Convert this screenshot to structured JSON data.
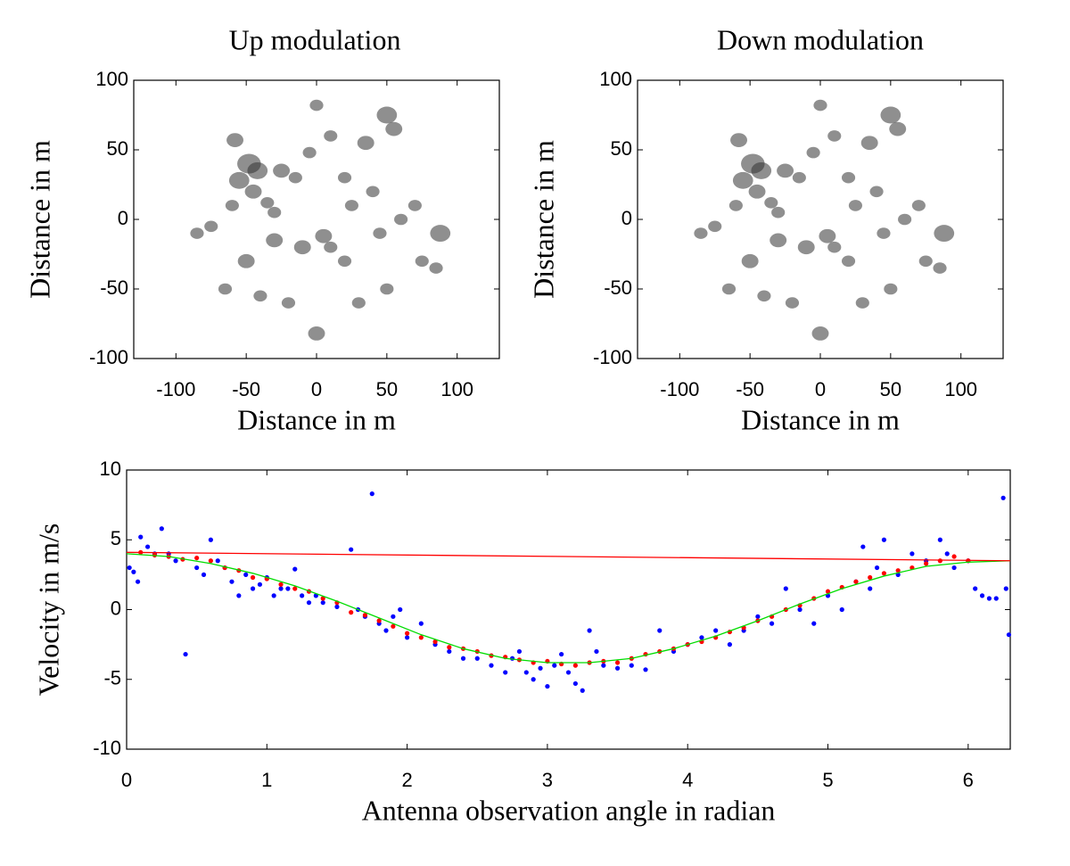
{
  "chart_data": [
    {
      "type": "scatter",
      "title": "Up modulation",
      "xlabel": "Distance in m",
      "ylabel": "Distance in m",
      "xlim": [
        -130,
        130
      ],
      "ylim": [
        -100,
        100
      ],
      "xticks": [
        -100,
        -50,
        0,
        50,
        100
      ],
      "yticks": [
        -100,
        -50,
        0,
        50,
        100
      ],
      "series": [
        {
          "color": "#333333",
          "type": "blob",
          "x": [
            -58,
            -48,
            -42,
            -55,
            -45,
            -60,
            -35,
            -25,
            -15,
            -5,
            0,
            10,
            20,
            35,
            50,
            55,
            40,
            25,
            60,
            88,
            75,
            85,
            -30,
            -10,
            10,
            20,
            -50,
            -65,
            -40,
            -20,
            0,
            30,
            50,
            -85,
            -75,
            -30,
            5,
            45,
            70
          ],
          "values": [
            57,
            40,
            35,
            28,
            20,
            10,
            12,
            35,
            30,
            48,
            82,
            60,
            30,
            55,
            75,
            65,
            20,
            10,
            0,
            -10,
            -30,
            -35,
            -15,
            -20,
            -20,
            -30,
            -30,
            -50,
            -55,
            -60,
            -82,
            -60,
            -50,
            -10,
            -5,
            5,
            -12,
            -10,
            10
          ],
          "sizes": [
            5,
            7,
            6,
            6,
            5,
            4,
            4,
            5,
            4,
            4,
            4,
            4,
            4,
            5,
            6,
            5,
            4,
            4,
            4,
            6,
            4,
            4,
            5,
            5,
            4,
            4,
            5,
            4,
            4,
            4,
            5,
            4,
            4,
            4,
            4,
            4,
            5,
            4,
            4
          ]
        }
      ]
    },
    {
      "type": "scatter",
      "title": "Down modulation",
      "xlabel": "Distance in m",
      "ylabel": "Distance in m",
      "xlim": [
        -130,
        130
      ],
      "ylim": [
        -100,
        100
      ],
      "xticks": [
        -100,
        -50,
        0,
        50,
        100
      ],
      "yticks": [
        -100,
        -50,
        0,
        50,
        100
      ],
      "series": [
        {
          "color": "#333333",
          "type": "blob",
          "x": [
            -58,
            -48,
            -42,
            -55,
            -45,
            -60,
            -35,
            -25,
            -15,
            -5,
            0,
            10,
            20,
            35,
            50,
            55,
            40,
            25,
            60,
            88,
            75,
            85,
            -30,
            -10,
            10,
            20,
            -50,
            -65,
            -40,
            -20,
            0,
            30,
            50,
            -85,
            -75,
            -30,
            5,
            45,
            70
          ],
          "values": [
            57,
            40,
            35,
            28,
            20,
            10,
            12,
            35,
            30,
            48,
            82,
            60,
            30,
            55,
            75,
            65,
            20,
            10,
            0,
            -10,
            -30,
            -35,
            -15,
            -20,
            -20,
            -30,
            -30,
            -50,
            -55,
            -60,
            -82,
            -60,
            -50,
            -10,
            -5,
            5,
            -12,
            -10,
            10
          ],
          "sizes": [
            5,
            7,
            6,
            6,
            5,
            4,
            4,
            5,
            4,
            4,
            4,
            4,
            4,
            5,
            6,
            5,
            4,
            4,
            4,
            6,
            4,
            4,
            5,
            5,
            4,
            4,
            5,
            4,
            4,
            4,
            5,
            4,
            4,
            4,
            4,
            4,
            5,
            4,
            4
          ]
        }
      ]
    },
    {
      "type": "scatter",
      "xlabel": "Antenna observation angle in radian",
      "ylabel": "Velocity in m/s",
      "xlim": [
        0,
        6.3
      ],
      "ylim": [
        -10,
        10
      ],
      "xticks": [
        0,
        1,
        2,
        3,
        4,
        5,
        6
      ],
      "yticks": [
        -10,
        -5,
        0,
        5,
        10
      ],
      "series": [
        {
          "color": "#0000ff",
          "type": "dot",
          "x": [
            0.02,
            0.05,
            0.08,
            0.1,
            0.15,
            0.2,
            0.25,
            0.3,
            0.35,
            0.42,
            0.5,
            0.55,
            0.6,
            0.65,
            0.7,
            0.75,
            0.8,
            0.85,
            0.9,
            0.95,
            1.0,
            1.05,
            1.1,
            1.15,
            1.2,
            1.25,
            1.3,
            1.35,
            1.4,
            1.5,
            1.6,
            1.65,
            1.7,
            1.75,
            1.8,
            1.85,
            1.9,
            1.95,
            2.0,
            2.1,
            2.2,
            2.3,
            2.4,
            2.5,
            2.6,
            2.7,
            2.75,
            2.8,
            2.85,
            2.9,
            2.95,
            3.0,
            3.05,
            3.1,
            3.15,
            3.2,
            3.25,
            3.3,
            3.35,
            3.4,
            3.5,
            3.6,
            3.7,
            3.8,
            3.9,
            4.0,
            4.1,
            4.2,
            4.3,
            4.4,
            4.5,
            4.6,
            4.7,
            4.8,
            4.9,
            5.0,
            5.1,
            5.2,
            5.25,
            5.3,
            5.35,
            5.4,
            5.5,
            5.6,
            5.7,
            5.8,
            5.85,
            5.9,
            6.0,
            6.05,
            6.1,
            6.15,
            6.2,
            6.25,
            6.27,
            6.29
          ],
          "values": [
            3,
            2.7,
            2,
            5.2,
            4.5,
            4,
            5.8,
            4,
            3.5,
            -3.2,
            3,
            2.5,
            5,
            3.5,
            3,
            2,
            1,
            2.5,
            1.5,
            1.8,
            2.3,
            1,
            1.5,
            1.5,
            2.9,
            1,
            0.5,
            1,
            0.5,
            0.2,
            4.3,
            0,
            -0.5,
            8.3,
            -1,
            -1.5,
            -0.5,
            0,
            -2,
            -1,
            -2.5,
            -3,
            -3.5,
            -3.5,
            -4,
            -4.5,
            -3.5,
            -3,
            -4.5,
            -5,
            -4.2,
            -5.5,
            -4,
            -3.2,
            -4.5,
            -5.3,
            -5.8,
            -1.5,
            -3,
            -4,
            -4.2,
            -4,
            -4.3,
            -1.5,
            -3,
            -2.5,
            -2,
            -1.5,
            -2.5,
            -1.5,
            -0.5,
            -1,
            1.5,
            0,
            -1,
            1,
            0,
            2,
            4.5,
            1.5,
            3,
            5,
            2.5,
            4,
            3.5,
            5,
            4,
            3,
            3.5,
            1.5,
            1,
            0.8,
            0.8,
            8,
            1.5,
            -1.8
          ]
        },
        {
          "color": "#ff0000",
          "type": "dot",
          "x": [
            0.1,
            0.2,
            0.3,
            0.4,
            0.5,
            0.6,
            0.7,
            0.8,
            0.9,
            1.0,
            1.1,
            1.2,
            1.3,
            1.4,
            1.5,
            1.6,
            1.7,
            1.8,
            1.9,
            2.0,
            2.1,
            2.2,
            2.3,
            2.4,
            2.5,
            2.6,
            2.7,
            2.8,
            2.9,
            3.0,
            3.1,
            3.2,
            3.3,
            3.4,
            3.5,
            3.6,
            3.7,
            3.8,
            3.9,
            4.0,
            4.1,
            4.2,
            4.3,
            4.4,
            4.5,
            4.6,
            4.7,
            4.8,
            4.9,
            5.0,
            5.1,
            5.2,
            5.3,
            5.4,
            5.5,
            5.6,
            5.7,
            5.8,
            5.9,
            6.0
          ],
          "values": [
            4.1,
            3.9,
            3.8,
            3.6,
            3.7,
            3.5,
            3.0,
            2.8,
            2.3,
            2.2,
            1.8,
            1.5,
            1.3,
            0.8,
            0.5,
            -0.2,
            -0.4,
            -0.8,
            -1.2,
            -1.7,
            -2.0,
            -2.3,
            -2.7,
            -2.8,
            -3.0,
            -3.3,
            -3.4,
            -3.6,
            -3.8,
            -3.7,
            -3.9,
            -4.0,
            -3.8,
            -3.7,
            -3.8,
            -3.5,
            -3.2,
            -3.0,
            -2.8,
            -2.5,
            -2.3,
            -2.0,
            -1.6,
            -1.3,
            -0.8,
            -0.5,
            0,
            0.3,
            0.8,
            1.3,
            1.6,
            2.0,
            2.3,
            2.6,
            2.8,
            3.0,
            3.3,
            3.5,
            3.8,
            3.5
          ]
        },
        {
          "color": "#00dd00",
          "type": "line",
          "x": [
            0,
            0.3,
            0.6,
            0.9,
            1.2,
            1.5,
            1.8,
            2.1,
            2.4,
            2.7,
            3.0,
            3.3,
            3.6,
            3.9,
            4.2,
            4.5,
            4.8,
            5.1,
            5.4,
            5.7,
            6.0,
            6.3
          ],
          "values": [
            4.0,
            3.8,
            3.3,
            2.6,
            1.7,
            0.6,
            -0.6,
            -1.8,
            -2.8,
            -3.5,
            -3.8,
            -3.8,
            -3.5,
            -2.8,
            -1.9,
            -0.8,
            0.4,
            1.5,
            2.4,
            3.1,
            3.4,
            3.5
          ]
        },
        {
          "color": "#ff0000",
          "type": "line",
          "x": [
            0,
            6.3
          ],
          "values": [
            4.1,
            3.5
          ]
        }
      ]
    }
  ]
}
